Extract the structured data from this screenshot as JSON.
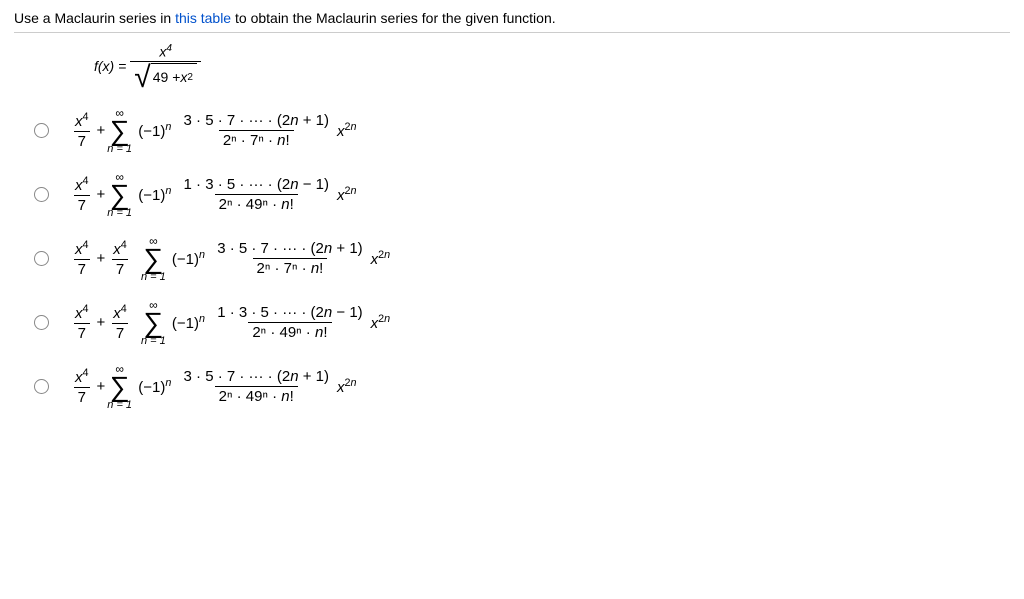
{
  "prompt": {
    "pre": "Use a Maclaurin series in ",
    "link": "this table",
    "post": " to obtain the Maclaurin series for the given function."
  },
  "func": {
    "lhs": "f(x) = ",
    "numerator_base": "x",
    "numerator_exp": "4",
    "den_inside_a": "49 + ",
    "den_inside_b": "x",
    "den_inside_exp": "2"
  },
  "shared": {
    "plus": " + ",
    "neg1": "(−1)",
    "n": "n",
    "sigma_top": "∞",
    "sigma_bottom": "n = 1",
    "frac_x4_num": "x",
    "frac_x4_exp": "4",
    "frac_x4_den": "7",
    "trail_x": "x",
    "trail_exp": "2n"
  },
  "options": [
    {
      "coef2": false,
      "num": "3 · 5 · 7 · ··· · (2n + 1)",
      "den": "2ⁿ · 7ⁿ · n!"
    },
    {
      "coef2": false,
      "num": "1 · 3 · 5 · ··· · (2n − 1)",
      "den": "2ⁿ · 49ⁿ · n!"
    },
    {
      "coef2": true,
      "num": "3 · 5 · 7 · ··· · (2n + 1)",
      "den": "2ⁿ · 7ⁿ · n!"
    },
    {
      "coef2": true,
      "num": "1 · 3 · 5 · ··· · (2n − 1)",
      "den": "2ⁿ · 49ⁿ · n!"
    },
    {
      "coef2": false,
      "num": "3 · 5 · 7 · ··· · (2n + 1)",
      "den": "2ⁿ · 49ⁿ · n!"
    }
  ]
}
